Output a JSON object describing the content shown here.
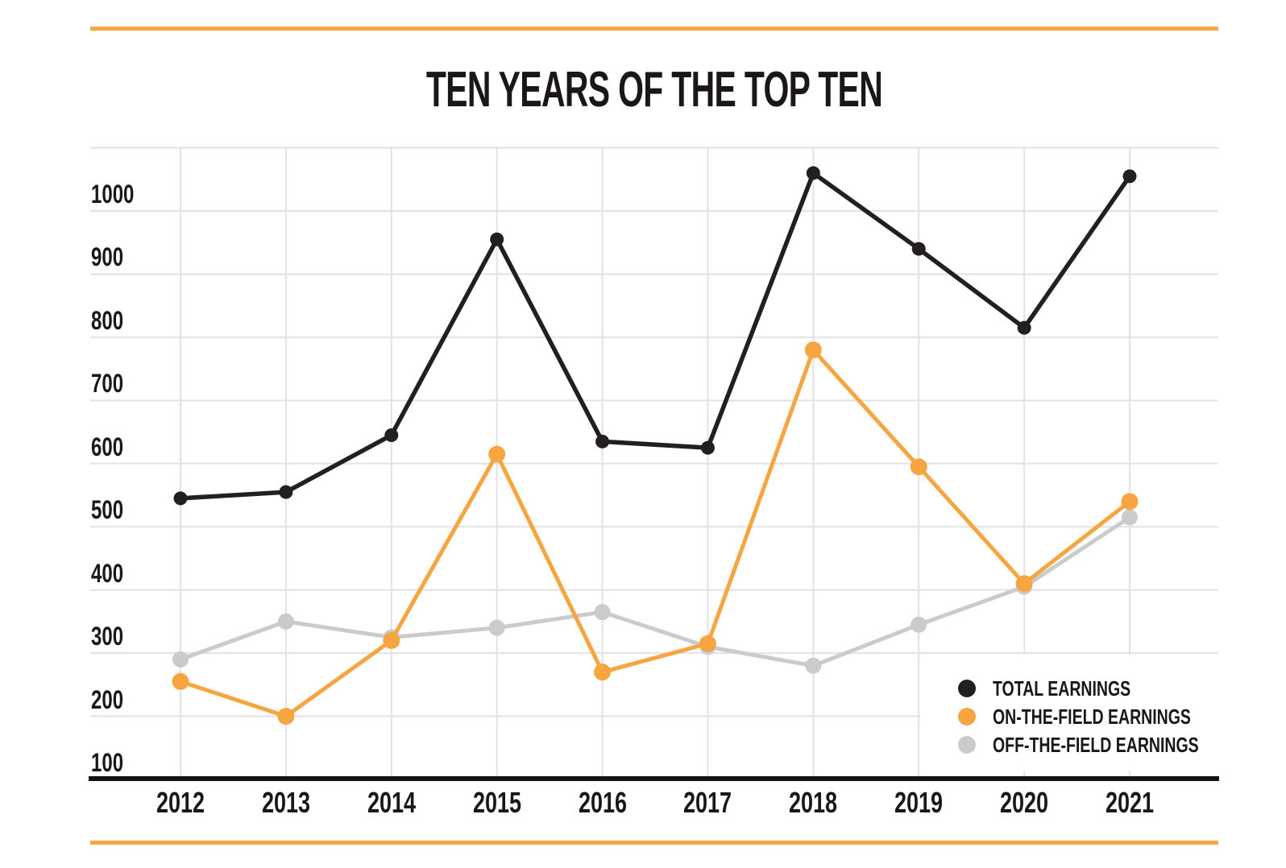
{
  "page": {
    "title": "TEN YEARS OF THE TOP TEN",
    "accent_color": "#F7A643",
    "text_color": "#1B1718",
    "background_color": "#FFFFFF"
  },
  "chart_data": {
    "type": "line",
    "title": "TEN YEARS OF THE TOP TEN",
    "categories": [
      "2012",
      "2013",
      "2014",
      "2015",
      "2016",
      "2017",
      "2018",
      "2019",
      "2020",
      "2021"
    ],
    "series": [
      {
        "key": "total",
        "name": "TOTAL EARNINGS",
        "color": "#231F20",
        "line_width": 5.5,
        "marker_radius": 8.5,
        "values": [
          545,
          555,
          645,
          955,
          635,
          625,
          1060,
          940,
          815,
          1055
        ]
      },
      {
        "key": "on-field",
        "name": "ON-THE-FIELD EARNINGS",
        "color": "#F7A541",
        "line_width": 5,
        "marker_radius": 10.5,
        "values": [
          255,
          200,
          320,
          615,
          270,
          315,
          780,
          595,
          410,
          540
        ]
      },
      {
        "key": "off-field",
        "name": "OFF-THE-FIELD EARNINGS",
        "color": "#CBCBCB",
        "line_width": 5,
        "marker_radius": 10,
        "values": [
          290,
          350,
          325,
          340,
          365,
          310,
          280,
          345,
          405,
          515
        ]
      }
    ],
    "y_ticks": [
      1000,
      900,
      800,
      700,
      600,
      500,
      400,
      300,
      200,
      100
    ],
    "ylim": [
      100,
      1100
    ],
    "grid": true,
    "gridline_color": "#E2E2E2",
    "axis_color": "#131313",
    "legend_position": "bottom-right",
    "xlabel": "",
    "ylabel": ""
  }
}
